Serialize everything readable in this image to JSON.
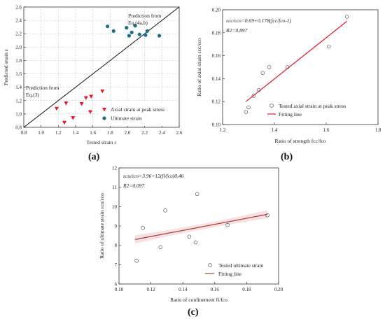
{
  "chart_data": [
    {
      "id": "a",
      "type": "scatter",
      "caption": "(a)",
      "xlabel": "Tested strain ε",
      "ylabel": "Predicted strain ε",
      "xlim": [
        0.8,
        2.6
      ],
      "ylim": [
        0.8,
        2.6
      ],
      "xticks": [
        "0.8",
        "1.0",
        "1.2",
        "1.4",
        "1.6",
        "1.8",
        "2.0",
        "2.2",
        "2.4",
        "2.6"
      ],
      "yticks": [
        "0.8",
        "1.0",
        "1.2",
        "1.4",
        "1.6",
        "1.8",
        "2.0",
        "2.2",
        "2.4",
        "2.6"
      ],
      "grid": true,
      "annotations": [
        {
          "lines": [
            "Prediction from",
            "Eq.(4a,b)"
          ],
          "anchor": [
            1.85,
            2.45
          ]
        },
        {
          "lines": [
            "Prediction from",
            "Eq.(3)"
          ],
          "anchor": [
            0.83,
            1.42
          ]
        }
      ],
      "series": [
        {
          "name": "Axial strain at peak stress",
          "marker": "triangle-down",
          "color": "#e8192c",
          "points": [
            [
              1.18,
              1.08
            ],
            [
              1.27,
              0.87
            ],
            [
              1.29,
              1.16
            ],
            [
              1.37,
              0.94
            ],
            [
              1.47,
              1.15
            ],
            [
              1.52,
              1.24
            ],
            [
              1.57,
              1.03
            ],
            [
              1.58,
              1.26
            ],
            [
              1.71,
              1.34
            ]
          ]
        },
        {
          "name": "Ultimate strain",
          "marker": "circle",
          "color": "#1f6f8b",
          "points": [
            [
              1.77,
              2.31
            ],
            [
              1.84,
              2.24
            ],
            [
              1.99,
              2.29
            ],
            [
              2.02,
              2.17
            ],
            [
              2.05,
              2.22
            ],
            [
              2.09,
              2.32
            ],
            [
              2.14,
              2.19
            ],
            [
              2.21,
              2.18
            ],
            [
              2.23,
              2.24
            ],
            [
              2.37,
              2.17
            ]
          ]
        }
      ],
      "reference_line": {
        "type": "y=x"
      },
      "legend": "bottom-right"
    },
    {
      "id": "b",
      "type": "scatter",
      "caption": "(b)",
      "xlabel": "Ratio of strength fcc/fco",
      "ylabel": "Ratio of axial strain εcc/εco",
      "xlim": [
        1.2,
        1.8
      ],
      "ylim": [
        0.1,
        0.2
      ],
      "xticks": [
        "1.2",
        "1.4",
        "1.6",
        "1.8"
      ],
      "yticks": [
        "0.10",
        "0.12",
        "0.14",
        "0.16",
        "0.18",
        "0.20"
      ],
      "equation": "εcc/εco=0.69+0.178(fcc/fco-1)",
      "r2": "R2=0.897",
      "series": [
        {
          "name": "Tested axial strain at peak stress",
          "marker": "circle-open",
          "color": "#555555",
          "points": [
            [
              1.29,
              0.111
            ],
            [
              1.3,
              0.115
            ],
            [
              1.32,
              0.125
            ],
            [
              1.34,
              0.13
            ],
            [
              1.355,
              0.145
            ],
            [
              1.38,
              0.15
            ],
            [
              1.45,
              0.15
            ],
            [
              1.61,
              0.168
            ],
            [
              1.68,
              0.194
            ]
          ]
        }
      ],
      "fit": {
        "name": "Fitting line",
        "color": "#e8192c",
        "x": [
          1.29,
          1.68
        ],
        "y": [
          0.12,
          0.19
        ]
      },
      "legend": "bottom-right"
    },
    {
      "id": "c",
      "type": "scatter",
      "caption": "(c)",
      "xlabel": "Ratio of confinement fl/fco",
      "ylabel": "Ratio of ultimate strain εcu/εco",
      "xlim": [
        0.1,
        0.2
      ],
      "ylim": [
        6,
        12
      ],
      "xticks": [
        "0.10",
        "0.12",
        "0.14",
        "0.16",
        "0.18",
        "0.20"
      ],
      "yticks": [
        "6",
        "7",
        "8",
        "9",
        "10",
        "11",
        "12"
      ],
      "equation": "εcu/εco=3.96+12(fl/fco)0.46",
      "r2": "R2=0.097",
      "series": [
        {
          "name": "Tested ultimate strain",
          "marker": "circle-open",
          "color": "#555555",
          "points": [
            [
              0.111,
              7.2
            ],
            [
              0.115,
              8.9
            ],
            [
              0.126,
              7.9
            ],
            [
              0.129,
              9.8
            ],
            [
              0.144,
              8.45
            ],
            [
              0.148,
              8.15
            ],
            [
              0.149,
              10.65
            ],
            [
              0.168,
              9.05
            ],
            [
              0.193,
              9.55
            ]
          ]
        }
      ],
      "fit": {
        "name": "Fitting line",
        "color": "#a0442c",
        "x": [
          0.11,
          0.193
        ],
        "y": [
          8.3,
          9.6
        ]
      },
      "legend": "bottom-right"
    }
  ]
}
